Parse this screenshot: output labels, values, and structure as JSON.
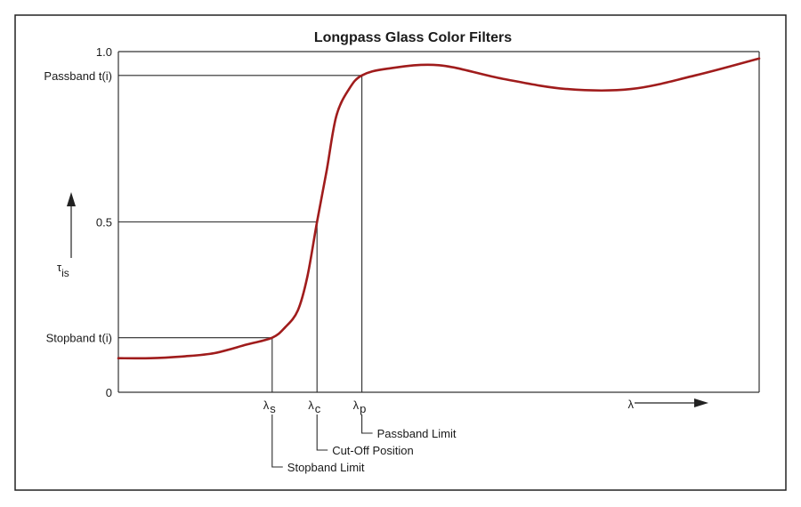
{
  "chart_data": {
    "type": "line",
    "title": "Longpass Glass Color Filters",
    "xlabel": "λ",
    "ylabel": "τis",
    "ylim": [
      0,
      1.0
    ],
    "y_ticks": [
      {
        "value": 0,
        "label": "0"
      },
      {
        "value": 0.5,
        "label": "0.5"
      },
      {
        "value": 1.0,
        "label": "1.0"
      }
    ],
    "y_markers": [
      {
        "value": 0.93,
        "label": "Passband t(i)"
      },
      {
        "value": 0.16,
        "label": "Stopband t(i)"
      }
    ],
    "x_markers": [
      {
        "symbol": "λ",
        "sub": "s",
        "value": 0.24,
        "annotation": "Stopband Limit"
      },
      {
        "symbol": "λ",
        "sub": "c",
        "value": 0.31,
        "annotation": "Cut-Off Position"
      },
      {
        "symbol": "λ",
        "sub": "p",
        "value": 0.38,
        "annotation": "Passband Limit"
      }
    ],
    "series": [
      {
        "color": "#a01c1c",
        "x": [
          0,
          0.05,
          0.1,
          0.15,
          0.2,
          0.24,
          0.26,
          0.28,
          0.295,
          0.31,
          0.325,
          0.34,
          0.36,
          0.38,
          0.42,
          0.5,
          0.6,
          0.7,
          0.8,
          0.9,
          1.0
        ],
        "y": [
          0.1,
          0.1,
          0.105,
          0.115,
          0.14,
          0.16,
          0.19,
          0.24,
          0.34,
          0.5,
          0.65,
          0.81,
          0.89,
          0.93,
          0.95,
          0.96,
          0.92,
          0.89,
          0.89,
          0.93,
          0.98
        ]
      }
    ],
    "grid": false,
    "legend": "none"
  }
}
